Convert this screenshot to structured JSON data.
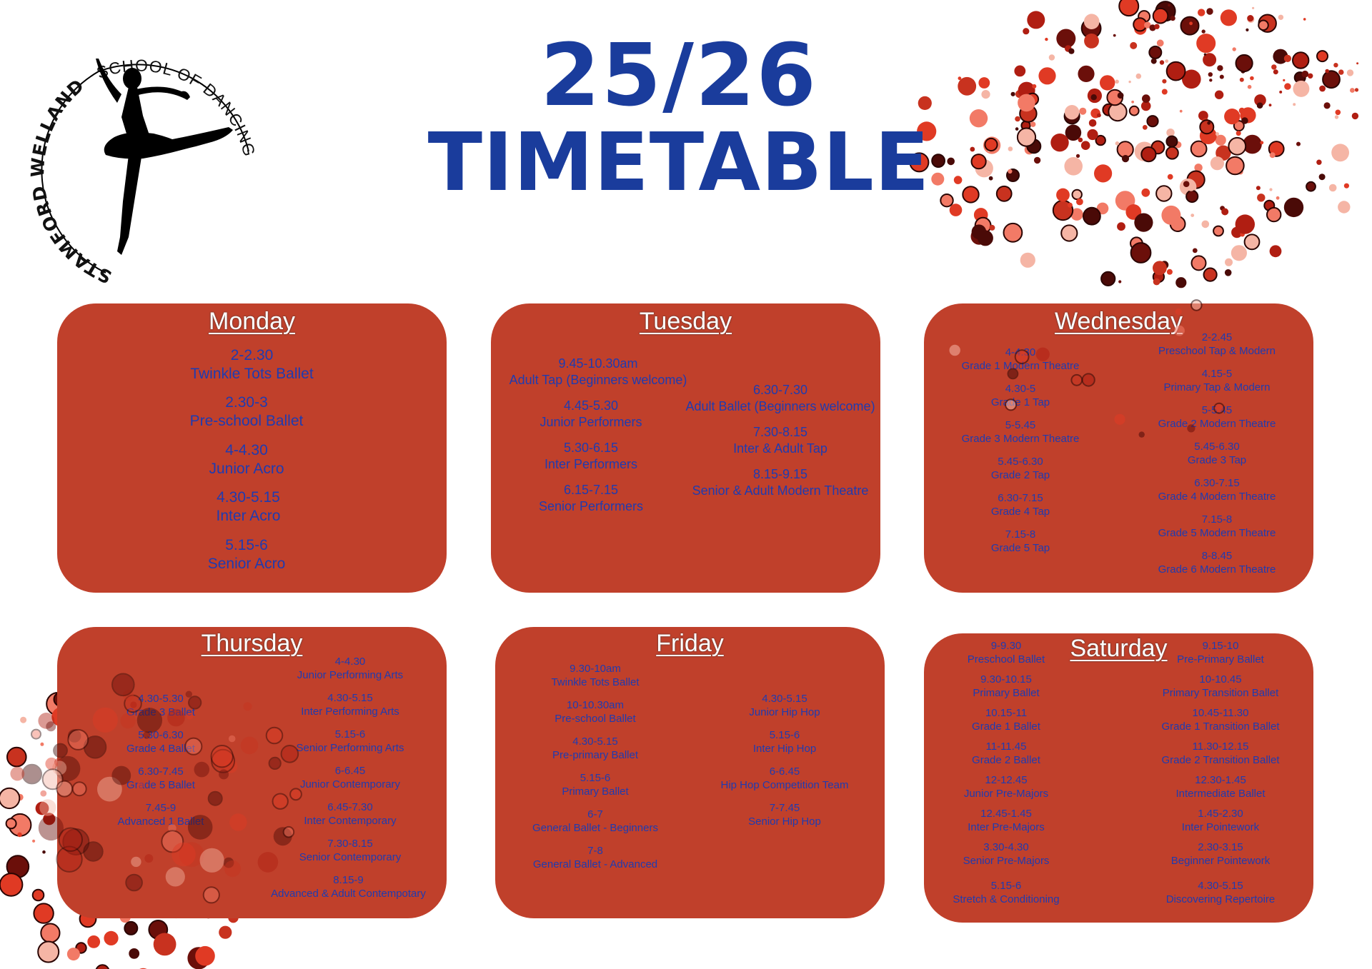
{
  "logo": {
    "arc_top": "SCHOOL OF DANCING",
    "arc_side": "STAMFORD WELLAND"
  },
  "title": {
    "line1": "25/26",
    "line2": "TIMETABLE"
  },
  "colors": {
    "title": "#1a3c9c",
    "card": "#c0402b",
    "class_text": "#1f3bb0",
    "day_text": "#ffffff"
  },
  "days": {
    "monday": {
      "name": "Monday",
      "classes": [
        {
          "time": "2-2.30",
          "name": "Twinkle Tots Ballet"
        },
        {
          "time": "2.30-3",
          "name": "Pre-school Ballet"
        },
        {
          "time": "4-4.30",
          "name": "Junior Acro"
        },
        {
          "time": "4.30-5.15",
          "name": "Inter Acro"
        },
        {
          "time": "5.15-6",
          "name": "Senior Acro"
        }
      ]
    },
    "tuesday": {
      "name": "Tuesday",
      "classes": [
        {
          "time": "9.45-10.30am",
          "name": "Adult Tap (Beginners welcome)"
        },
        {
          "time": "4.45-5.30",
          "name": "Junior Performers"
        },
        {
          "time": "5.30-6.15",
          "name": "Inter Performers"
        },
        {
          "time": "6.15-7.15",
          "name": "Senior Performers"
        },
        {
          "time": "6.30-7.30",
          "name": "Adult Ballet (Beginners welcome)"
        },
        {
          "time": "7.30-8.15",
          "name": "Inter & Adult Tap"
        },
        {
          "time": "8.15-9.15",
          "name": "Senior & Adult Modern Theatre"
        }
      ]
    },
    "wednesday": {
      "name": "Wednesday",
      "classes": [
        {
          "time": "4-4.30",
          "name": "Grade 1 Modern Theatre"
        },
        {
          "time": "4.30-5",
          "name": "Grade 1 Tap"
        },
        {
          "time": "5-5.45",
          "name": "Grade 3 Modern Theatre"
        },
        {
          "time": "5.45-6.30",
          "name": "Grade 2 Tap"
        },
        {
          "time": "6.30-7.15",
          "name": "Grade 4 Tap"
        },
        {
          "time": "7.15-8",
          "name": "Grade 5 Tap"
        },
        {
          "time": "2-2.45",
          "name": "Preschool Tap & Modern"
        },
        {
          "time": "4.15-5",
          "name": "Primary Tap & Modern"
        },
        {
          "time": "5-5.45",
          "name": "Grade 2 Modern Theatre"
        },
        {
          "time": "5.45-6.30",
          "name": "Grade 3 Tap"
        },
        {
          "time": "6.30-7.15",
          "name": "Grade 4 Modern Theatre"
        },
        {
          "time": "7.15-8",
          "name": "Grade 5 Modern Theatre"
        },
        {
          "time": "8-8.45",
          "name": "Grade 6 Modern Theatre"
        }
      ]
    },
    "thursday": {
      "name": "Thursday",
      "classes": [
        {
          "time": "4.30-5.30",
          "name": "Grade 3 Ballet"
        },
        {
          "time": "5.30-6.30",
          "name": "Grade 4 Ballet"
        },
        {
          "time": "6.30-7.45",
          "name": "Grade 5 Ballet"
        },
        {
          "time": "7.45-9",
          "name": "Advanced 1 Ballet"
        },
        {
          "time": "4-4.30",
          "name": "Junior Performing Arts"
        },
        {
          "time": "4.30-5.15",
          "name": "Inter Performing Arts"
        },
        {
          "time": "5.15-6",
          "name": "Senior Performing Arts"
        },
        {
          "time": "6-6.45",
          "name": "Junior Contemporary"
        },
        {
          "time": "6.45-7.30",
          "name": "Inter Contemporary"
        },
        {
          "time": "7.30-8.15",
          "name": "Senior Contemporary"
        },
        {
          "time": "8.15-9",
          "name": "Advanced & Adult Contempotary"
        }
      ]
    },
    "friday": {
      "name": "Friday",
      "classes": [
        {
          "time": "9.30-10am",
          "name": "Twinkle Tots Ballet"
        },
        {
          "time": "10-10.30am",
          "name": "Pre-school Ballet"
        },
        {
          "time": "4.30-5.15",
          "name": "Pre-primary Ballet"
        },
        {
          "time": "5.15-6",
          "name": "Primary Ballet"
        },
        {
          "time": "6-7",
          "name": "General Ballet - Beginners"
        },
        {
          "time": "7-8",
          "name": "General Ballet - Advanced"
        },
        {
          "time": "4.30-5.15",
          "name": "Junior Hip Hop"
        },
        {
          "time": "5.15-6",
          "name": "Inter Hip Hop"
        },
        {
          "time": "6-6.45",
          "name": "Hip Hop Competition Team"
        },
        {
          "time": "7-7.45",
          "name": "Senior Hip Hop"
        }
      ]
    },
    "saturday": {
      "name": "Saturday",
      "classes": [
        {
          "time": "9-9.30",
          "name": "Preschool Ballet"
        },
        {
          "time": "9.30-10.15",
          "name": "Primary Ballet"
        },
        {
          "time": "10.15-11",
          "name": "Grade 1 Ballet"
        },
        {
          "time": "11-11.45",
          "name": "Grade 2 Ballet"
        },
        {
          "time": "12-12.45",
          "name": "Junior Pre-Majors"
        },
        {
          "time": "12.45-1.45",
          "name": "Inter Pre-Majors"
        },
        {
          "time": "3.30-4.30",
          "name": "Senior Pre-Majors"
        },
        {
          "time": "5.15-6",
          "name": "Stretch & Conditioning"
        },
        {
          "time": "9.15-10",
          "name": "Pre-Primary Ballet"
        },
        {
          "time": "10-10.45",
          "name": "Primary Transition Ballet"
        },
        {
          "time": "10.45-11.30",
          "name": "Grade 1 Transition Ballet"
        },
        {
          "time": "11.30-12.15",
          "name": "Grade 2 Transition Ballet"
        },
        {
          "time": "12.30-1.45",
          "name": "Intermediate Ballet"
        },
        {
          "time": "1.45-2.30",
          "name": "Inter Pointework"
        },
        {
          "time": "2.30-3.15",
          "name": "Beginner Pointework"
        },
        {
          "time": "4.30-5.15",
          "name": "Discovering Repertoire"
        }
      ]
    }
  }
}
